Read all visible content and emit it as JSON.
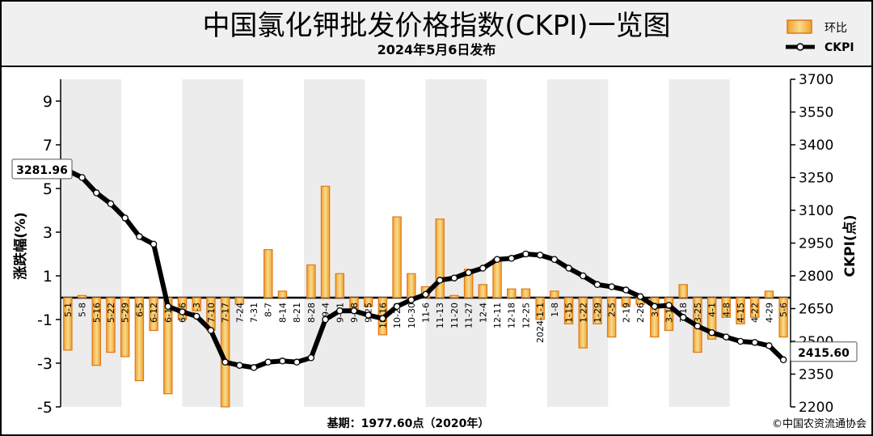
{
  "header": {
    "title": "中国氯化钾批发价格指数(CKPI)一览图",
    "subtitle": "2024年5月6日发布"
  },
  "legend": {
    "bar_label": "环比",
    "line_label": "CKPI"
  },
  "footer": {
    "base": "基期：1977.60点（2020年）",
    "copyright": "©中国农资流通协会"
  },
  "chart_data": {
    "type": "bar+line",
    "categories": [
      "5-1",
      "5-8",
      "5-16",
      "5-22",
      "5-29",
      "6-5",
      "6-12",
      "6-19",
      "6-26",
      "7-3",
      "7-10",
      "7-17",
      "7-24",
      "7-31",
      "8-7",
      "8-14",
      "8-21",
      "8-28",
      "9-4",
      "9-11",
      "9-18",
      "9-25",
      "10-16",
      "10-23",
      "10-30",
      "11-6",
      "11-13",
      "11-20",
      "11-27",
      "12-4",
      "12-11",
      "12-18",
      "12-25",
      "2024-1-1",
      "1-8",
      "1-15",
      "1-22",
      "1-29",
      "2-5",
      "2-19",
      "2-26",
      "3-4",
      "3-11",
      "3-18",
      "3-25",
      "4-1",
      "4-8",
      "4-15",
      "4-22",
      "4-29",
      "5-6"
    ],
    "tick_labels": [
      "5-1",
      "5-8",
      "5-16",
      "5-22",
      "5-29",
      "6-5",
      "6-12",
      "6-19",
      "6-26",
      "7-3",
      "7-10",
      "7-17",
      "7-24",
      "7-31",
      "8-7",
      "8-14",
      "8-21",
      "8-28",
      "9-4",
      "9-11",
      "9-18",
      "9-25",
      "10-16",
      "10-23",
      "10-30",
      "11-6",
      "11-13",
      "11-20",
      "11-27",
      "12-4",
      "12-11",
      "12-18",
      "12-25",
      "2024-1-1",
      "1-8",
      "1-15",
      "1-22",
      "1-29",
      "2-5",
      "2-19",
      "2-26",
      "3-4",
      "3-11",
      "3-18",
      "3-25",
      "4-1",
      "4-8",
      "4-15",
      "4-22",
      "4-29",
      "5-6"
    ],
    "series": [
      {
        "name": "环比",
        "kind": "bar",
        "axis": "left",
        "values": [
          -2.4,
          0.1,
          -3.1,
          -2.5,
          -2.7,
          -3.8,
          -1.5,
          -4.4,
          -1.0,
          -0.6,
          -1.5,
          -5.0,
          -0.3,
          0.0,
          2.2,
          0.3,
          0.0,
          1.5,
          5.1,
          1.1,
          -0.5,
          -0.4,
          -1.7,
          3.7,
          1.1,
          0.5,
          3.6,
          0.1,
          1.3,
          0.6,
          1.8,
          0.4,
          0.4,
          -1.0,
          0.3,
          -1.2,
          -2.3,
          -1.2,
          -1.8,
          -0.4,
          -0.3,
          -1.8,
          -1.5,
          0.6,
          -2.5,
          -1.9,
          -0.9,
          -1.2,
          -0.9,
          0.3,
          -1.8
        ]
      },
      {
        "name": "CKPI",
        "kind": "line",
        "axis": "right",
        "values": [
          3281.96,
          3250,
          3180,
          3130,
          3065,
          2980,
          2945,
          2660,
          2635,
          2615,
          2550,
          2405,
          2390,
          2380,
          2405,
          2410,
          2405,
          2425,
          2600,
          2640,
          2640,
          2620,
          2605,
          2660,
          2690,
          2715,
          2780,
          2790,
          2815,
          2835,
          2875,
          2880,
          2900,
          2895,
          2875,
          2835,
          2800,
          2760,
          2750,
          2735,
          2705,
          2660,
          2665,
          2610,
          2570,
          2540,
          2520,
          2500,
          2495,
          2480,
          2415.6
        ]
      }
    ],
    "annotations": {
      "first_value": "3281.96",
      "last_value": "2415.60"
    },
    "ylabel": "涨跌幅(%)",
    "y2label": "CKPI(点)",
    "ylim": [
      -5,
      10
    ],
    "y_ticks": [
      9,
      7,
      5,
      3,
      1,
      -1,
      -3,
      -5
    ],
    "y2lim": [
      2200,
      3700
    ],
    "y2_ticks": [
      3700,
      3550,
      3400,
      3250,
      3100,
      2950,
      2800,
      2650,
      2500,
      2350,
      2200
    ],
    "colors": {
      "bar_fill_inner": "#f5d27a",
      "bar_fill_edge": "#f0a030",
      "bar_stroke": "#e07818",
      "line": "#000000",
      "plot_bg": "#ffffff",
      "header_bg": "#f0f0f0"
    },
    "grid": "vertical-bands",
    "legend_position": "top-right"
  }
}
